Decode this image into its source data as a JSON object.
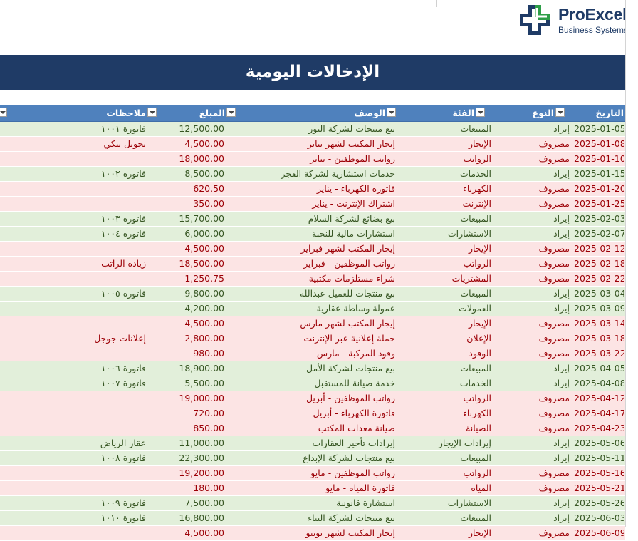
{
  "brand": {
    "name": "ProExcel",
    "subtitle": "Business Systems"
  },
  "title": "الإدخالات اليومية",
  "columns": {
    "date": "التاريخ",
    "type": "النوع",
    "category": "الفئة",
    "description": "الوصف",
    "amount": "المبلغ",
    "notes": "ملاحظات"
  },
  "colors": {
    "banner": "#1f3b66",
    "header": "#4f81bd",
    "income_row": "#e2efda",
    "expense_row": "#fce4e4"
  },
  "rows": [
    {
      "date": "2025-01-05",
      "type": "إيراد",
      "category": "المبيعات",
      "description": "بيع منتجات لشركة النور",
      "amount": "12,500.00",
      "notes": "فاتورة ١٠٠١",
      "kind": "inc"
    },
    {
      "date": "2025-01-08",
      "type": "مصروف",
      "category": "الإيجار",
      "description": "إيجار المكتب لشهر يناير",
      "amount": "4,500.00",
      "notes": "تحويل بنكي",
      "kind": "exp"
    },
    {
      "date": "2025-01-10",
      "type": "مصروف",
      "category": "الرواتب",
      "description": "رواتب الموظفين - يناير",
      "amount": "18,000.00",
      "notes": "",
      "kind": "exp"
    },
    {
      "date": "2025-01-15",
      "type": "إيراد",
      "category": "الخدمات",
      "description": "خدمات استشارية لشركة الفجر",
      "amount": "8,500.00",
      "notes": "فاتورة ١٠٠٢",
      "kind": "inc"
    },
    {
      "date": "2025-01-20",
      "type": "مصروف",
      "category": "الكهرباء",
      "description": "فاتورة الكهرباء - يناير",
      "amount": "620.50",
      "notes": "",
      "kind": "exp"
    },
    {
      "date": "2025-01-25",
      "type": "مصروف",
      "category": "الإنترنت",
      "description": "اشتراك الإنترنت - يناير",
      "amount": "350.00",
      "notes": "",
      "kind": "exp"
    },
    {
      "date": "2025-02-03",
      "type": "إيراد",
      "category": "المبيعات",
      "description": "بيع بضائع لشركة السلام",
      "amount": "15,700.00",
      "notes": "فاتورة ١٠٠٣",
      "kind": "inc"
    },
    {
      "date": "2025-02-07",
      "type": "إيراد",
      "category": "الاستشارات",
      "description": "استشارات مالية للنخبة",
      "amount": "6,000.00",
      "notes": "فاتورة ١٠٠٤",
      "kind": "inc"
    },
    {
      "date": "2025-02-12",
      "type": "مصروف",
      "category": "الإيجار",
      "description": "إيجار المكتب لشهر فبراير",
      "amount": "4,500.00",
      "notes": "",
      "kind": "exp"
    },
    {
      "date": "2025-02-18",
      "type": "مصروف",
      "category": "الرواتب",
      "description": "رواتب الموظفين - فبراير",
      "amount": "18,500.00",
      "notes": "زيادة الراتب",
      "kind": "exp"
    },
    {
      "date": "2025-02-22",
      "type": "مصروف",
      "category": "المشتريات",
      "description": "شراء مستلزمات مكتبية",
      "amount": "1,250.75",
      "notes": "",
      "kind": "exp"
    },
    {
      "date": "2025-03-04",
      "type": "إيراد",
      "category": "المبيعات",
      "description": "بيع منتجات للعميل عبدالله",
      "amount": "9,800.00",
      "notes": "فاتورة ١٠٠٥",
      "kind": "inc"
    },
    {
      "date": "2025-03-09",
      "type": "إيراد",
      "category": "العمولات",
      "description": "عمولة وساطة عقارية",
      "amount": "4,200.00",
      "notes": "",
      "kind": "inc"
    },
    {
      "date": "2025-03-14",
      "type": "مصروف",
      "category": "الإيجار",
      "description": "إيجار المكتب لشهر مارس",
      "amount": "4,500.00",
      "notes": "",
      "kind": "exp"
    },
    {
      "date": "2025-03-18",
      "type": "مصروف",
      "category": "الإعلان",
      "description": "حملة إعلانية عبر الإنترنت",
      "amount": "2,800.00",
      "notes": "إعلانات جوجل",
      "kind": "exp"
    },
    {
      "date": "2025-03-22",
      "type": "مصروف",
      "category": "الوقود",
      "description": "وقود المركبة - مارس",
      "amount": "980.00",
      "notes": "",
      "kind": "exp"
    },
    {
      "date": "2025-04-05",
      "type": "إيراد",
      "category": "المبيعات",
      "description": "بيع منتجات لشركة الأمل",
      "amount": "18,900.00",
      "notes": "فاتورة ١٠٠٦",
      "kind": "inc"
    },
    {
      "date": "2025-04-08",
      "type": "إيراد",
      "category": "الخدمات",
      "description": "خدمة صيانة للمستقبل",
      "amount": "5,500.00",
      "notes": "فاتورة ١٠٠٧",
      "kind": "inc"
    },
    {
      "date": "2025-04-12",
      "type": "مصروف",
      "category": "الرواتب",
      "description": "رواتب الموظفين - أبريل",
      "amount": "19,000.00",
      "notes": "",
      "kind": "exp"
    },
    {
      "date": "2025-04-17",
      "type": "مصروف",
      "category": "الكهرباء",
      "description": "فاتورة الكهرباء - أبريل",
      "amount": "720.00",
      "notes": "",
      "kind": "exp"
    },
    {
      "date": "2025-04-23",
      "type": "مصروف",
      "category": "الصيانة",
      "description": "صيانة معدات المكتب",
      "amount": "850.00",
      "notes": "",
      "kind": "exp"
    },
    {
      "date": "2025-05-06",
      "type": "إيراد",
      "category": "إيرادات الإيجار",
      "description": "إيرادات تأجير العقارات",
      "amount": "11,000.00",
      "notes": "عقار الرياض",
      "kind": "inc"
    },
    {
      "date": "2025-05-11",
      "type": "إيراد",
      "category": "المبيعات",
      "description": "بيع منتجات لشركة الإبداع",
      "amount": "22,300.00",
      "notes": "فاتورة ١٠٠٨",
      "kind": "inc"
    },
    {
      "date": "2025-05-16",
      "type": "مصروف",
      "category": "الرواتب",
      "description": "رواتب الموظفين - مايو",
      "amount": "19,200.00",
      "notes": "",
      "kind": "exp"
    },
    {
      "date": "2025-05-21",
      "type": "مصروف",
      "category": "المياه",
      "description": "فاتورة المياه - مايو",
      "amount": "180.00",
      "notes": "",
      "kind": "exp"
    },
    {
      "date": "2025-05-26",
      "type": "إيراد",
      "category": "الاستشارات",
      "description": "استشارة قانونية",
      "amount": "7,500.00",
      "notes": "فاتورة ١٠٠٩",
      "kind": "inc"
    },
    {
      "date": "2025-06-03",
      "type": "إيراد",
      "category": "المبيعات",
      "description": "بيع منتجات لشركة البناء",
      "amount": "16,800.00",
      "notes": "فاتورة ١٠١٠",
      "kind": "inc"
    },
    {
      "date": "2025-06-09",
      "type": "مصروف",
      "category": "الإيجار",
      "description": "إيجار المكتب لشهر يونيو",
      "amount": "4,500.00",
      "notes": "",
      "kind": "exp"
    }
  ]
}
